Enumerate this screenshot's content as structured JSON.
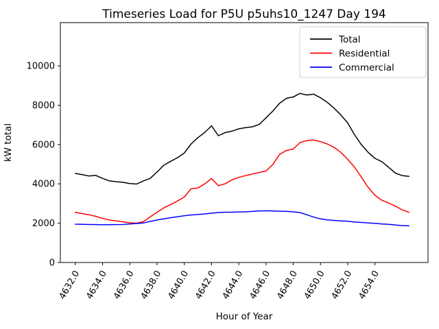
{
  "figure": {
    "title": "Timeseries Load for P5U p5uhs10_1247  Day 194",
    "xlabel": "Hour of Year",
    "ylabel": "kW total"
  },
  "chart_data": {
    "type": "line",
    "title": "Timeseries Load for P5U p5uhs10_1247  Day 194",
    "xlabel": "Hour of Year",
    "ylabel": "kW total",
    "grid": false,
    "legend_position": "upper right",
    "xlim": [
      4630.9,
      4657.9
    ],
    "ylim": [
      0,
      12200
    ],
    "x_ticks": [
      4632,
      4634,
      4636,
      4638,
      4640,
      4642,
      4644,
      4646,
      4648,
      4650,
      4652,
      4654
    ],
    "x_tick_label_format": "one_decimal",
    "x_tick_rotation_deg": 60,
    "y_ticks": [
      0,
      2000,
      4000,
      6000,
      8000,
      10000
    ],
    "x": [
      4632.0,
      4632.5,
      4633.0,
      4633.5,
      4634.0,
      4634.5,
      4635.0,
      4635.5,
      4636.0,
      4636.5,
      4637.0,
      4637.5,
      4638.0,
      4638.5,
      4639.0,
      4639.5,
      4640.0,
      4640.5,
      4641.0,
      4641.5,
      4642.0,
      4642.5,
      4643.0,
      4643.5,
      4644.0,
      4644.5,
      4645.0,
      4645.5,
      4646.0,
      4646.5,
      4647.0,
      4647.5,
      4648.0,
      4648.5,
      4649.0,
      4649.5,
      4650.0,
      4650.5,
      4651.0,
      4651.5,
      4652.0,
      4652.5,
      4653.0,
      4653.5,
      4654.0,
      4654.5,
      4655.0,
      4655.5,
      4656.0,
      4656.5
    ],
    "series": [
      {
        "name": "Total",
        "color": "#000000",
        "values": [
          4530,
          4470,
          4400,
          4430,
          4280,
          4150,
          4110,
          4080,
          4020,
          3990,
          4150,
          4280,
          4600,
          4950,
          5150,
          5330,
          5570,
          6030,
          6350,
          6610,
          6950,
          6450,
          6610,
          6680,
          6800,
          6860,
          6900,
          7020,
          7360,
          7700,
          8100,
          8350,
          8420,
          8600,
          8520,
          8560,
          8380,
          8150,
          7850,
          7500,
          7100,
          6500,
          6000,
          5600,
          5300,
          5130,
          4850,
          4550,
          4420,
          4380
        ]
      },
      {
        "name": "Residential",
        "color": "#ff0000",
        "values": [
          2550,
          2490,
          2430,
          2350,
          2240,
          2160,
          2120,
          2070,
          2020,
          2000,
          2080,
          2320,
          2560,
          2780,
          2950,
          3130,
          3330,
          3750,
          3790,
          4000,
          4270,
          3910,
          4000,
          4200,
          4330,
          4420,
          4500,
          4580,
          4650,
          4980,
          5500,
          5700,
          5770,
          6100,
          6200,
          6230,
          6150,
          6030,
          5860,
          5600,
          5250,
          4850,
          4350,
          3820,
          3420,
          3170,
          3030,
          2870,
          2680,
          2550
        ]
      },
      {
        "name": "Commercial",
        "color": "#0000ff",
        "values": [
          1950,
          1940,
          1935,
          1930,
          1920,
          1925,
          1930,
          1935,
          1960,
          1985,
          2010,
          2090,
          2160,
          2220,
          2280,
          2330,
          2380,
          2420,
          2440,
          2470,
          2510,
          2540,
          2560,
          2560,
          2570,
          2580,
          2600,
          2620,
          2630,
          2620,
          2610,
          2600,
          2580,
          2540,
          2430,
          2310,
          2220,
          2170,
          2140,
          2115,
          2100,
          2060,
          2040,
          2010,
          1990,
          1960,
          1940,
          1905,
          1880,
          1870
        ]
      }
    ]
  }
}
